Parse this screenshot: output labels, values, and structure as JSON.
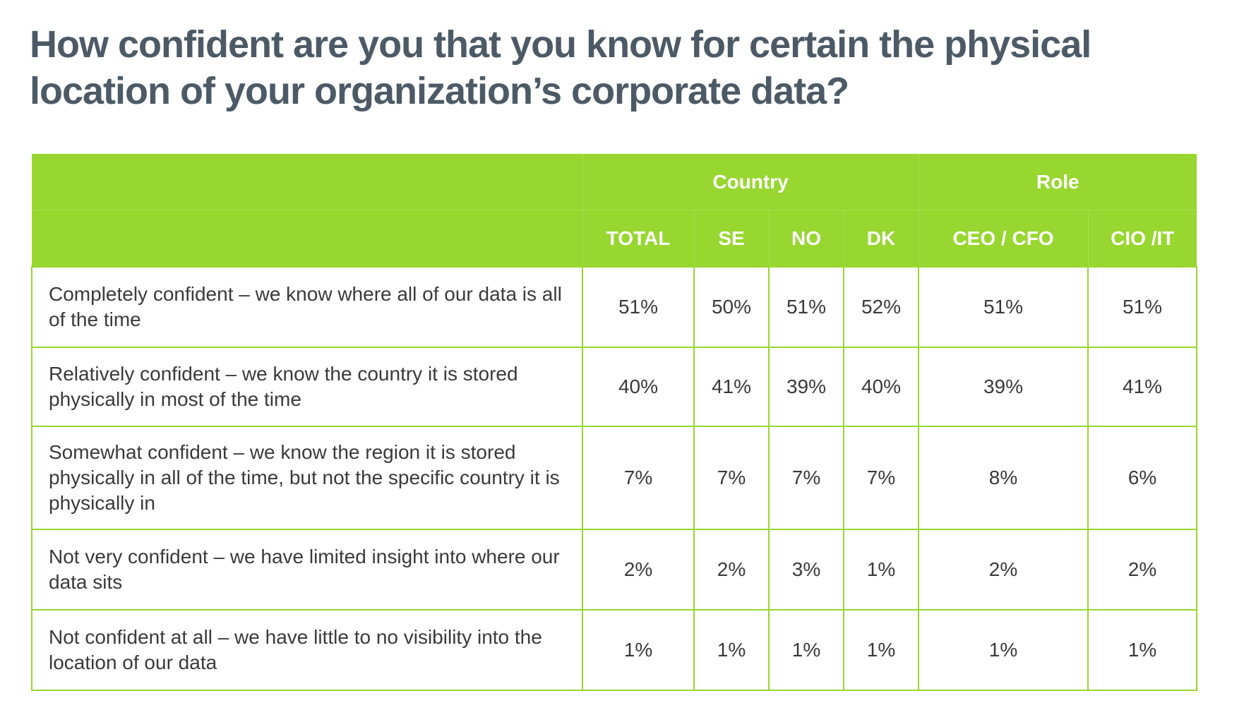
{
  "title": "How confident are you  that you know for certain the physical location of your organization’s corporate data?",
  "table": {
    "group_headers": {
      "country": "Country",
      "role": "Role"
    },
    "columns": [
      "TOTAL",
      "SE",
      "NO",
      "DK",
      "CEO / CFO",
      "CIO /IT"
    ],
    "rows": [
      {
        "label": "Completely confident – we know where all of our data is all of the time",
        "values": [
          "51%",
          "50%",
          "51%",
          "52%",
          "51%",
          "51%"
        ]
      },
      {
        "label": "Relatively confident – we know the country it is stored physically in most of the time",
        "values": [
          "40%",
          "41%",
          "39%",
          "40%",
          "39%",
          "41%"
        ]
      },
      {
        "label": "Somewhat confident – we know the region it is stored physically in all of the time, but not the specific country it is physically in",
        "values": [
          "7%",
          "7%",
          "7%",
          "7%",
          "8%",
          "6%"
        ]
      },
      {
        "label": "Not very confident – we have limited insight into where our data sits",
        "values": [
          "2%",
          "2%",
          "3%",
          "1%",
          "2%",
          "2%"
        ]
      },
      {
        "label": "Not confident at all – we have little to no visibility into the location of our data",
        "values": [
          "1%",
          "1%",
          "1%",
          "1%",
          "1%",
          "1%"
        ]
      }
    ]
  },
  "colors": {
    "header_green": "#97d72f",
    "title_slate": "#4b5a66",
    "body_text": "#3a3a3a"
  }
}
